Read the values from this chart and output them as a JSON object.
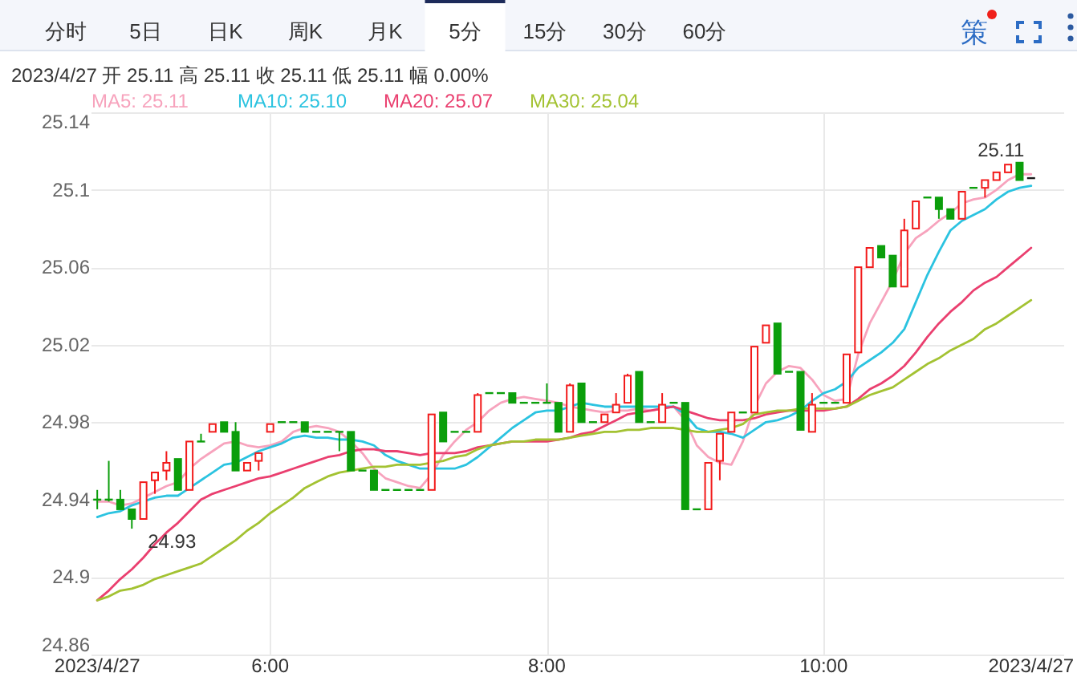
{
  "chart_data": {
    "type": "candlestick",
    "categories": [
      "2023/4/27",
      null,
      null,
      null,
      null,
      null,
      null,
      null,
      null,
      null,
      null,
      null,
      null,
      null,
      null,
      "6:00",
      null,
      null,
      null,
      null,
      null,
      null,
      null,
      null,
      null,
      null,
      null,
      null,
      null,
      null,
      null,
      null,
      null,
      null,
      null,
      null,
      null,
      null,
      null,
      "8:00",
      null,
      null,
      null,
      null,
      null,
      null,
      null,
      null,
      null,
      null,
      null,
      null,
      null,
      null,
      null,
      null,
      null,
      null,
      null,
      null,
      null,
      null,
      null,
      "10:00",
      null,
      null,
      null,
      null,
      null,
      null,
      null,
      null,
      null,
      null,
      null,
      null,
      null,
      null,
      null,
      null,
      null,
      "2023/4/27"
    ],
    "ohlc": [
      [
        24.94,
        24.945,
        24.935,
        24.94
      ],
      [
        24.94,
        24.96,
        24.939,
        24.94
      ],
      [
        24.94,
        24.945,
        24.935,
        24.935
      ],
      [
        24.935,
        24.935,
        24.925,
        24.93
      ],
      [
        24.93,
        24.949,
        24.93,
        24.949
      ],
      [
        24.95,
        24.954,
        24.943,
        24.954
      ],
      [
        24.955,
        24.965,
        24.95,
        24.959
      ],
      [
        24.961,
        24.961,
        24.945,
        24.945
      ],
      [
        24.945,
        24.97,
        24.945,
        24.97
      ],
      [
        24.97,
        24.974,
        24.97,
        24.97
      ],
      [
        24.975,
        24.979,
        24.975,
        24.979
      ],
      [
        24.98,
        24.98,
        24.975,
        24.975
      ],
      [
        24.975,
        24.98,
        24.955,
        24.955
      ],
      [
        24.955,
        24.959,
        24.955,
        24.959
      ],
      [
        24.96,
        24.964,
        24.955,
        24.964
      ],
      [
        24.975,
        24.979,
        24.975,
        24.979
      ],
      [
        24.98,
        24.98,
        24.98,
        24.98
      ],
      [
        24.98,
        24.98,
        24.98,
        24.98
      ],
      [
        24.98,
        24.98,
        24.975,
        24.975
      ],
      [
        24.975,
        24.975,
        24.975,
        24.975
      ],
      [
        24.975,
        24.975,
        24.975,
        24.975
      ],
      [
        24.975,
        24.975,
        24.965,
        24.975
      ],
      [
        24.975,
        24.975,
        24.955,
        24.955
      ],
      [
        24.955,
        24.955,
        24.955,
        24.955
      ],
      [
        24.955,
        24.955,
        24.945,
        24.945
      ],
      [
        24.945,
        24.945,
        24.945,
        24.945
      ],
      [
        24.945,
        24.945,
        24.945,
        24.945
      ],
      [
        24.945,
        24.945,
        24.945,
        24.945
      ],
      [
        24.945,
        24.945,
        24.945,
        24.945
      ],
      [
        24.945,
        24.984,
        24.945,
        24.984
      ],
      [
        24.985,
        24.985,
        24.97,
        24.97
      ],
      [
        24.975,
        24.975,
        24.975,
        24.975
      ],
      [
        24.975,
        24.975,
        24.975,
        24.975
      ],
      [
        24.975,
        24.995,
        24.975,
        24.994
      ],
      [
        24.995,
        24.995,
        24.995,
        24.995
      ],
      [
        24.995,
        24.995,
        24.995,
        24.995
      ],
      [
        24.995,
        24.995,
        24.99,
        24.99
      ],
      [
        24.99,
        24.99,
        24.99,
        24.99
      ],
      [
        24.99,
        24.99,
        24.99,
        24.99
      ],
      [
        24.99,
        25.0,
        24.99,
        24.99
      ],
      [
        24.99,
        24.99,
        24.975,
        24.975
      ],
      [
        24.975,
        25.0,
        24.975,
        24.999
      ],
      [
        25.0,
        25.0,
        24.98,
        24.98
      ],
      [
        24.98,
        24.98,
        24.98,
        24.98
      ],
      [
        24.98,
        24.984,
        24.98,
        24.984
      ],
      [
        24.985,
        24.995,
        24.985,
        24.989
      ],
      [
        24.99,
        25.005,
        24.99,
        25.004
      ],
      [
        25.006,
        25.006,
        24.98,
        24.98
      ],
      [
        24.98,
        24.98,
        24.98,
        24.98
      ],
      [
        24.98,
        24.995,
        24.98,
        24.989
      ],
      [
        24.99,
        24.99,
        24.99,
        24.99
      ],
      [
        24.99,
        24.99,
        24.935,
        24.935
      ],
      [
        24.935,
        24.935,
        24.935,
        24.935
      ],
      [
        24.935,
        24.959,
        24.935,
        24.959
      ],
      [
        24.96,
        24.974,
        24.95,
        24.974
      ],
      [
        24.975,
        24.985,
        24.975,
        24.985
      ],
      [
        24.985,
        24.985,
        24.985,
        24.985
      ],
      [
        24.985,
        25.019,
        24.985,
        25.019
      ],
      [
        25.021,
        25.03,
        25.021,
        25.03
      ],
      [
        25.031,
        25.031,
        25.005,
        25.005
      ],
      [
        25.006,
        25.006,
        25.006,
        25.006
      ],
      [
        25.006,
        25.006,
        24.976,
        24.976
      ],
      [
        24.975,
        24.995,
        24.975,
        24.989
      ],
      [
        24.99,
        24.99,
        24.99,
        24.99
      ],
      [
        24.99,
        24.99,
        24.99,
        24.99
      ],
      [
        24.99,
        25.015,
        24.99,
        25.015
      ],
      [
        25.016,
        25.06,
        25.016,
        25.06
      ],
      [
        25.06,
        25.07,
        25.06,
        25.07
      ],
      [
        25.071,
        25.071,
        25.065,
        25.065
      ],
      [
        25.066,
        25.066,
        25.05,
        25.05
      ],
      [
        25.05,
        25.085,
        25.05,
        25.079
      ],
      [
        25.08,
        25.094,
        25.08,
        25.094
      ],
      [
        25.096,
        25.096,
        25.096,
        25.096
      ],
      [
        25.096,
        25.096,
        25.085,
        25.09
      ],
      [
        25.09,
        25.09,
        25.085,
        25.085
      ],
      [
        25.085,
        25.099,
        25.085,
        25.099
      ],
      [
        25.101,
        25.101,
        25.101,
        25.101
      ],
      [
        25.101,
        25.105,
        25.096,
        25.105
      ],
      [
        25.105,
        25.109,
        25.105,
        25.109
      ],
      [
        25.109,
        25.113,
        25.109,
        25.113
      ],
      [
        25.114,
        25.114,
        25.105,
        25.105
      ],
      [
        25.106,
        25.106,
        25.106,
        25.106
      ]
    ],
    "colors": [
      "#0b9e0b",
      "#0b9e0b",
      "#0b9e0b",
      "#0b9e0b",
      "#f21a1a",
      "#f21a1a",
      "#f21a1a",
      "#0b9e0b",
      "#f21a1a",
      "#0b9e0b",
      "#f21a1a",
      "#0b9e0b",
      "#0b9e0b",
      "#f21a1a",
      "#f21a1a",
      "#f21a1a",
      "#0b9e0b",
      "#0b9e0b",
      "#0b9e0b",
      "#0b9e0b",
      "#0b9e0b",
      "#0b9e0b",
      "#0b9e0b",
      "#0b9e0b",
      "#0b9e0b",
      "#0b9e0b",
      "#0b9e0b",
      "#0b9e0b",
      "#0b9e0b",
      "#f21a1a",
      "#0b9e0b",
      "#0b9e0b",
      "#0b9e0b",
      "#f21a1a",
      "#0b9e0b",
      "#0b9e0b",
      "#0b9e0b",
      "#0b9e0b",
      "#0b9e0b",
      "#0b9e0b",
      "#0b9e0b",
      "#f21a1a",
      "#0b9e0b",
      "#0b9e0b",
      "#f21a1a",
      "#f21a1a",
      "#f21a1a",
      "#0b9e0b",
      "#0b9e0b",
      "#f21a1a",
      "#0b9e0b",
      "#0b9e0b",
      "#0b9e0b",
      "#f21a1a",
      "#f21a1a",
      "#f21a1a",
      "#0b9e0b",
      "#f21a1a",
      "#f21a1a",
      "#0b9e0b",
      "#0b9e0b",
      "#0b9e0b",
      "#f21a1a",
      "#0b9e0b",
      "#0b9e0b",
      "#f21a1a",
      "#f21a1a",
      "#f21a1a",
      "#0b9e0b",
      "#0b9e0b",
      "#f21a1a",
      "#f21a1a",
      "#0b9e0b",
      "#0b9e0b",
      "#0b9e0b",
      "#f21a1a",
      "#0b9e0b",
      "#f21a1a",
      "#f21a1a",
      "#f21a1a",
      "#0b9e0b",
      "#1a1a1a"
    ],
    "series": [
      {
        "name": "MA5: 25.11",
        "type": "line",
        "color": "#f7a3bd",
        "values": [
          24.939,
          24.939,
          24.937,
          24.938,
          24.941,
          24.944,
          24.947,
          24.949,
          24.956,
          24.961,
          24.965,
          24.969,
          24.97,
          24.968,
          24.967,
          24.968,
          24.97,
          24.975,
          24.977,
          24.978,
          24.977,
          24.975,
          24.97,
          24.964,
          24.956,
          24.951,
          24.949,
          24.947,
          24.946,
          24.953,
          24.963,
          24.97,
          24.976,
          24.98,
          24.986,
          24.99,
          24.992,
          24.993,
          24.992,
          24.991,
          24.99,
          24.988,
          24.987,
          24.986,
          24.985,
          24.986,
          24.986,
          24.987,
          24.986,
          24.987,
          24.988,
          24.981,
          24.968,
          24.962,
          24.959,
          24.958,
          24.97,
          24.988,
          25.0,
          25.006,
          25.009,
          25.008,
          25.002,
          24.994,
          24.991,
          24.992,
          25.015,
          25.031,
          25.042,
          25.053,
          25.067,
          25.075,
          25.079,
          25.084,
          25.088,
          25.093,
          25.095,
          25.096,
          25.1,
          25.105,
          25.108,
          25.108
        ]
      },
      {
        "name": "MA10: 25.10",
        "type": "line",
        "color": "#2bc3e0",
        "values": [
          24.931,
          24.933,
          24.934,
          24.937,
          24.939,
          24.941,
          24.942,
          24.942,
          24.946,
          24.95,
          24.954,
          24.958,
          24.959,
          24.962,
          24.965,
          24.967,
          24.969,
          24.972,
          24.973,
          24.972,
          24.972,
          24.971,
          24.971,
          24.97,
          24.968,
          24.963,
          24.96,
          24.958,
          24.956,
          24.956,
          24.956,
          24.956,
          24.958,
          24.962,
          24.967,
          24.972,
          24.977,
          24.981,
          24.985,
          24.986,
          24.986,
          24.988,
          24.99,
          24.989,
          24.988,
          24.988,
          24.988,
          24.988,
          24.988,
          24.988,
          24.988,
          24.984,
          24.977,
          24.975,
          24.975,
          24.974,
          24.972,
          24.976,
          24.98,
          24.981,
          24.983,
          24.986,
          24.991,
          24.995,
          24.997,
          25.001,
          25.008,
          25.012,
          25.016,
          25.021,
          25.028,
          25.042,
          25.056,
          25.068,
          25.079,
          25.084,
          25.087,
          25.09,
          25.095,
          25.099,
          25.101,
          25.102
        ]
      },
      {
        "name": "MA20: 25.07",
        "type": "line",
        "color": "#ea3f6f",
        "values": [
          24.888,
          24.893,
          24.899,
          24.904,
          24.91,
          24.917,
          24.923,
          24.928,
          24.934,
          24.94,
          24.943,
          24.945,
          24.947,
          24.949,
          24.951,
          24.952,
          24.954,
          24.956,
          24.958,
          24.96,
          24.962,
          24.963,
          24.965,
          24.966,
          24.966,
          24.965,
          24.965,
          24.964,
          24.963,
          24.964,
          24.964,
          24.964,
          24.965,
          24.967,
          24.968,
          24.969,
          24.97,
          24.97,
          24.97,
          24.97,
          24.971,
          24.972,
          24.974,
          24.975,
          24.978,
          24.981,
          24.984,
          24.985,
          24.986,
          24.987,
          24.988,
          24.986,
          24.984,
          24.982,
          24.981,
          24.981,
          24.981,
          24.982,
          24.984,
          24.985,
          24.986,
          24.986,
          24.986,
          24.986,
          24.987,
          24.988,
          24.992,
          24.997,
          25.0,
          25.004,
          25.009,
          25.016,
          25.024,
          25.031,
          25.037,
          25.042,
          25.048,
          25.052,
          25.055,
          25.06,
          25.065,
          25.07
        ]
      },
      {
        "name": "MA30: 25.04",
        "type": "line",
        "color": "#a3c232",
        "values": [
          24.888,
          24.89,
          24.893,
          24.894,
          24.896,
          24.899,
          24.901,
          24.903,
          24.905,
          24.907,
          24.911,
          24.915,
          24.919,
          24.924,
          24.928,
          24.933,
          24.937,
          24.941,
          24.946,
          24.949,
          24.952,
          24.954,
          24.955,
          24.956,
          24.957,
          24.957,
          24.958,
          24.958,
          24.958,
          24.959,
          24.96,
          24.962,
          24.963,
          24.966,
          24.968,
          24.969,
          24.97,
          24.97,
          24.971,
          24.971,
          24.971,
          24.972,
          24.973,
          24.974,
          24.975,
          24.975,
          24.976,
          24.976,
          24.977,
          24.977,
          24.977,
          24.976,
          24.975,
          24.975,
          24.976,
          24.977,
          24.979,
          24.984,
          24.985,
          24.986,
          24.986,
          24.987,
          24.987,
          24.987,
          24.987,
          24.988,
          24.991,
          24.994,
          24.996,
          24.998,
          25.002,
          25.006,
          25.01,
          25.013,
          25.017,
          25.02,
          25.023,
          25.028,
          25.031,
          25.035,
          25.039,
          25.043
        ]
      }
    ],
    "ylim": [
      24.86,
      25.14
    ],
    "yticks": [
      24.86,
      24.9,
      24.94,
      24.98,
      25.02,
      25.06,
      25.1,
      25.14
    ],
    "grid": true,
    "legend": "top left",
    "annotations": [
      "分时",
      "5日",
      "日K",
      "周K",
      "月K",
      "5分",
      "15分",
      "30分",
      "60分",
      "策",
      "2023/4/27 开 25.11 高 25.11 收 25.11 低 25.11 幅 0.00%",
      "25.11",
      "24.93"
    ]
  }
}
